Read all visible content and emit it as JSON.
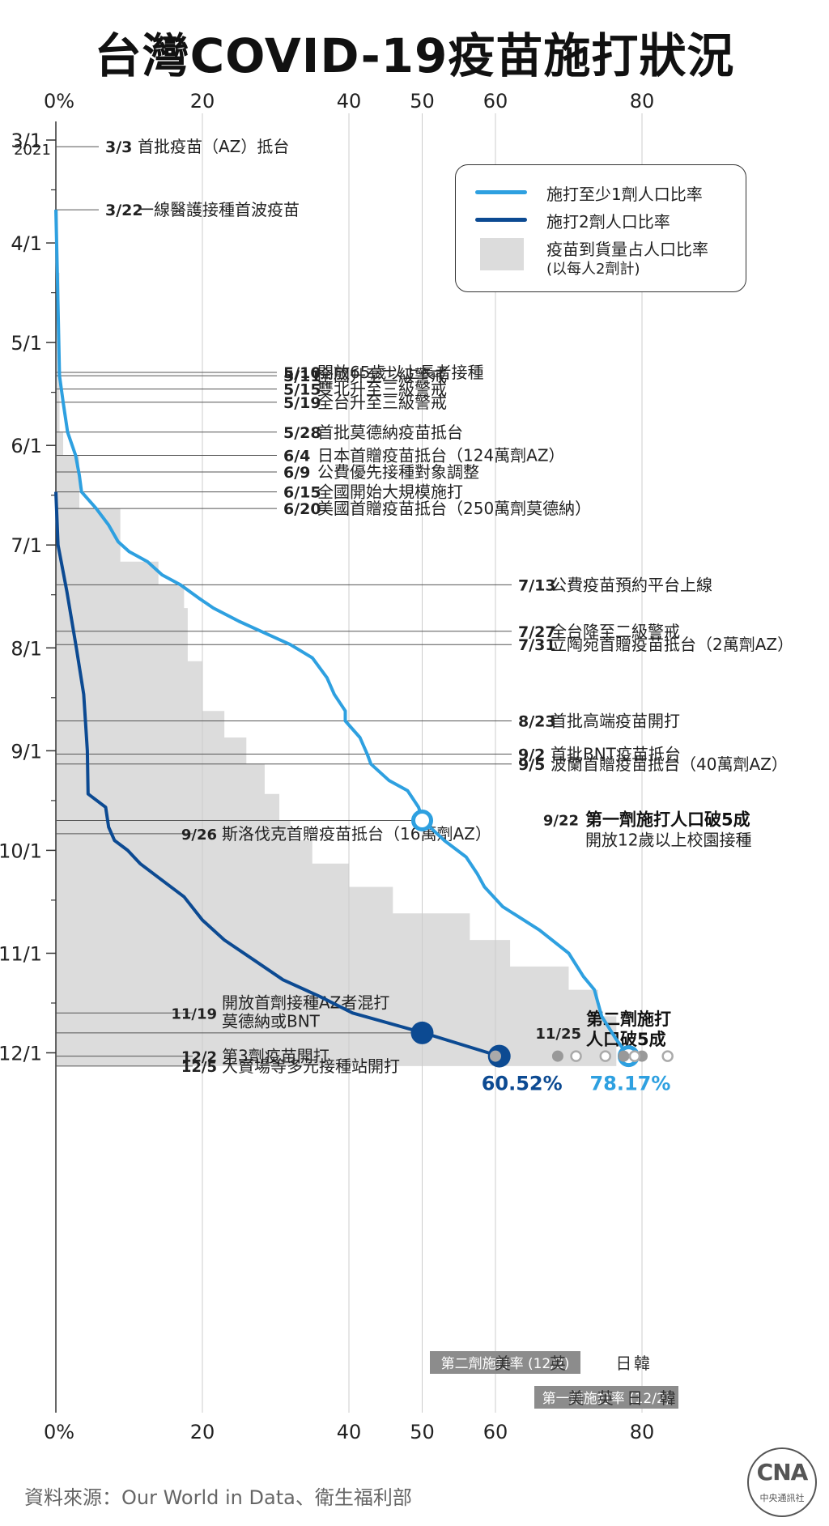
{
  "title": "台灣COVID-19疫苗施打狀況",
  "source": "資料來源：Our World in Data、衛生福利部",
  "logo": {
    "mark": "CNA",
    "text": "中央通訊社"
  },
  "legend": {
    "dose1": "施打至少1劑人口比率",
    "dose2": "施打2劑人口比率",
    "delivered_line1": "疫苗到貨量占人口比率",
    "delivered_line2": "(以每人2劑計)"
  },
  "colors": {
    "dose1": "#2ea0e0",
    "dose2": "#0c4a92",
    "delivered": "#dcdcdc",
    "axis": "#333333",
    "grid": "#cccccc",
    "annotation": "#555555",
    "country_dark": "#999999",
    "badge": "#8c8c8c"
  },
  "axis": {
    "x_ticks": [
      0,
      20,
      40,
      50,
      60,
      80
    ],
    "x_tick_labels": [
      "0%",
      "20",
      "40",
      "50",
      "60",
      "80"
    ],
    "year": "2021",
    "y_months": [
      {
        "label": "3/1",
        "date": "2021-03-01"
      },
      {
        "label": "4/1",
        "date": "2021-04-01"
      },
      {
        "label": "5/1",
        "date": "2021-05-01"
      },
      {
        "label": "6/1",
        "date": "2021-06-01"
      },
      {
        "label": "7/1",
        "date": "2021-07-01"
      },
      {
        "label": "8/1",
        "date": "2021-08-01"
      },
      {
        "label": "9/1",
        "date": "2021-09-01"
      },
      {
        "label": "10/1",
        "date": "2021-10-01"
      },
      {
        "label": "11/1",
        "date": "2021-11-01"
      },
      {
        "label": "12/1",
        "date": "2021-12-01"
      }
    ]
  },
  "chart_data": {
    "type": "area",
    "orientation": "time on vertical axis (downward), percent on horizontal axis",
    "xlim": [
      0,
      80
    ],
    "ylim": [
      "2021-03-01",
      "2021-12-05"
    ],
    "series": [
      {
        "name": "施打至少1劑人口比率",
        "type": "line",
        "points": [
          [
            "2021-03-22",
            0
          ],
          [
            "2021-04-10",
            0.2
          ],
          [
            "2021-05-11",
            0.5
          ],
          [
            "2021-05-19",
            1.0
          ],
          [
            "2021-05-28",
            1.6
          ],
          [
            "2021-06-04",
            2.7
          ],
          [
            "2021-06-10",
            3.2
          ],
          [
            "2021-06-15",
            3.5
          ],
          [
            "2021-06-20",
            5.5
          ],
          [
            "2021-06-25",
            7.2
          ],
          [
            "2021-06-30",
            8.5
          ],
          [
            "2021-07-03",
            10.0
          ],
          [
            "2021-07-06",
            12.5
          ],
          [
            "2021-07-10",
            14.5
          ],
          [
            "2021-07-13",
            17.0
          ],
          [
            "2021-07-17",
            19.5
          ],
          [
            "2021-07-20",
            21.5
          ],
          [
            "2021-07-24",
            25.0
          ],
          [
            "2021-07-27",
            28.0
          ],
          [
            "2021-07-31",
            32.0
          ],
          [
            "2021-08-04",
            35.0
          ],
          [
            "2021-08-10",
            37.0
          ],
          [
            "2021-08-15",
            38.0
          ],
          [
            "2021-08-20",
            39.5
          ],
          [
            "2021-08-23",
            39.5
          ],
          [
            "2021-08-28",
            41.5
          ],
          [
            "2021-09-02",
            42.5
          ],
          [
            "2021-09-05",
            43.0
          ],
          [
            "2021-09-10",
            45.5
          ],
          [
            "2021-09-13",
            48.0
          ],
          [
            "2021-09-18",
            49.5
          ],
          [
            "2021-09-22",
            50.1
          ],
          [
            "2021-09-28",
            53.0
          ],
          [
            "2021-10-03",
            56.0
          ],
          [
            "2021-10-08",
            57.5
          ],
          [
            "2021-10-12",
            58.5
          ],
          [
            "2021-10-18",
            61.0
          ],
          [
            "2021-10-25",
            66.0
          ],
          [
            "2021-11-01",
            70.0
          ],
          [
            "2021-11-08",
            72.0
          ],
          [
            "2021-11-12",
            73.5
          ],
          [
            "2021-11-20",
            74.5
          ],
          [
            "2021-11-27",
            76.5
          ],
          [
            "2021-12-02",
            78.17
          ]
        ]
      },
      {
        "name": "施打2劑人口比率",
        "type": "line",
        "points": [
          [
            "2021-06-15",
            0
          ],
          [
            "2021-07-01",
            0.3
          ],
          [
            "2021-07-15",
            1.5
          ],
          [
            "2021-08-01",
            2.8
          ],
          [
            "2021-08-15",
            3.8
          ],
          [
            "2021-09-01",
            4.3
          ],
          [
            "2021-09-14",
            4.4
          ],
          [
            "2021-09-18",
            6.8
          ],
          [
            "2021-09-24",
            7.2
          ],
          [
            "2021-09-28",
            8.0
          ],
          [
            "2021-10-01",
            9.8
          ],
          [
            "2021-10-05",
            11.5
          ],
          [
            "2021-10-10",
            14.5
          ],
          [
            "2021-10-15",
            17.5
          ],
          [
            "2021-10-22",
            20.0
          ],
          [
            "2021-10-28",
            23.0
          ],
          [
            "2021-11-03",
            27.0
          ],
          [
            "2021-11-09",
            31.0
          ],
          [
            "2021-11-14",
            36.0
          ],
          [
            "2021-11-19",
            40.5
          ],
          [
            "2021-11-25",
            50.2
          ],
          [
            "2021-12-02",
            60.52
          ]
        ]
      },
      {
        "name": "疫苗到貨量占人口比率",
        "type": "area",
        "points": [
          [
            "2021-03-22",
            0.3
          ],
          [
            "2021-04-10",
            0.5
          ],
          [
            "2021-05-10",
            0.5
          ],
          [
            "2021-05-28",
            1.0
          ],
          [
            "2021-06-04",
            3.2
          ],
          [
            "2021-06-20",
            8.8
          ],
          [
            "2021-07-06",
            14.0
          ],
          [
            "2021-07-13",
            17.5
          ],
          [
            "2021-07-20",
            18.0
          ],
          [
            "2021-08-05",
            20.0
          ],
          [
            "2021-08-20",
            23.0
          ],
          [
            "2021-08-28",
            26.0
          ],
          [
            "2021-09-05",
            28.5
          ],
          [
            "2021-09-14",
            30.5
          ],
          [
            "2021-09-22",
            32.0
          ],
          [
            "2021-09-28",
            35.0
          ],
          [
            "2021-10-05",
            40.0
          ],
          [
            "2021-10-12",
            46.0
          ],
          [
            "2021-10-20",
            56.5
          ],
          [
            "2021-10-28",
            62.0
          ],
          [
            "2021-11-05",
            70.0
          ],
          [
            "2021-11-12",
            74.0
          ],
          [
            "2021-11-20",
            76.5
          ],
          [
            "2021-12-05",
            78.0
          ]
        ]
      }
    ],
    "markers": [
      {
        "date": "2021-09-22",
        "value": 50,
        "series": "dose1",
        "style": "ring"
      },
      {
        "date": "2021-11-25",
        "value": 50,
        "series": "dose2",
        "style": "filled"
      },
      {
        "date": "2021-12-02",
        "value": 60.52,
        "series": "dose2",
        "style": "filled",
        "label": "60.52%"
      },
      {
        "date": "2021-12-02",
        "value": 78.17,
        "series": "dose1",
        "style": "ring",
        "label": "78.17%"
      }
    ],
    "events": [
      {
        "date": "2021-03-03",
        "label_date": "3/3",
        "text": "首批疫苗（AZ）抵台",
        "side": "left"
      },
      {
        "date": "2021-03-22",
        "label_date": "3/22",
        "text": "一線醫護接種首波疫苗",
        "side": "left"
      },
      {
        "date": "2021-05-10",
        "label_date": "5/10",
        "text": "開放65歲以上長者接種",
        "side": "mid"
      },
      {
        "date": "2021-05-11",
        "label_date": "5/11",
        "text": "全國升至二級警戒",
        "side": "mid"
      },
      {
        "date": "2021-05-15",
        "label_date": "5/15",
        "text": "雙北升至三級警戒",
        "side": "mid"
      },
      {
        "date": "2021-05-19",
        "label_date": "5/19",
        "text": "全台升至三級警戒",
        "side": "mid"
      },
      {
        "date": "2021-05-28",
        "label_date": "5/28",
        "text": "首批莫德納疫苗抵台",
        "side": "mid"
      },
      {
        "date": "2021-06-04",
        "label_date": "6/4",
        "text": "日本首贈疫苗抵台（124萬劑AZ）",
        "side": "mid"
      },
      {
        "date": "2021-06-09",
        "label_date": "6/9",
        "text": "公費優先接種對象調整",
        "side": "mid"
      },
      {
        "date": "2021-06-15",
        "label_date": "6/15",
        "text": "全國開始大規模施打",
        "side": "mid"
      },
      {
        "date": "2021-06-20",
        "label_date": "6/20",
        "text": "美國首贈疫苗抵台（250萬劑莫德納）",
        "side": "mid"
      },
      {
        "date": "2021-07-13",
        "label_date": "7/13",
        "text": "公費疫苗預約平台上線",
        "side": "right"
      },
      {
        "date": "2021-07-27",
        "label_date": "7/27",
        "text": "全台降至二級警戒",
        "side": "right"
      },
      {
        "date": "2021-07-31",
        "label_date": "7/31",
        "text": "立陶宛首贈疫苗抵台（2萬劑AZ）",
        "side": "right"
      },
      {
        "date": "2021-08-23",
        "label_date": "8/23",
        "text": "首批高端疫苗開打",
        "side": "right"
      },
      {
        "date": "2021-09-02",
        "label_date": "9/2",
        "text": "首批BNT疫苗抵台",
        "side": "right"
      },
      {
        "date": "2021-09-05",
        "label_date": "9/5",
        "text": "波蘭首贈疫苗抵台（40萬劑AZ）",
        "side": "right"
      },
      {
        "date": "2021-09-22",
        "label_date": "9/22",
        "text": "第一劑施打人口破5成",
        "text2": "開放12歲以上校園接種",
        "side": "point"
      },
      {
        "date": "2021-09-26",
        "label_date": "9/26",
        "text": "斯洛伐克首贈疫苗抵台（16萬劑AZ）",
        "side": "leftmid"
      },
      {
        "date": "2021-11-19",
        "label_date": "11/19",
        "text": "開放首劑接種AZ者混打",
        "text2": "莫德納或BNT",
        "side": "leftmid"
      },
      {
        "date": "2021-11-25",
        "label_date": "11/25",
        "text": "第二劑施打",
        "text2": "人口破5成",
        "side": "point2"
      },
      {
        "date": "2021-12-02",
        "label_date": "12/2",
        "text": "第3劑疫苗開打",
        "side": "leftmid"
      },
      {
        "date": "2021-12-05",
        "label_date": "12/5",
        "text": "大賣場等多元接種站開打",
        "side": "leftmid"
      }
    ],
    "comparison": {
      "dose2_badge": "第二劑施打率 (12/2)",
      "dose1_badge": "第一劑施打率 (12/2)",
      "dose2": [
        {
          "country": "美",
          "value": 60
        },
        {
          "country": "英",
          "value": 68.5
        },
        {
          "country": "日",
          "value": 77.5
        },
        {
          "country": "韓",
          "value": 80.0
        }
      ],
      "dose1": [
        {
          "country": "美",
          "value": 71.0
        },
        {
          "country": "英",
          "value": 75.0
        },
        {
          "country": "日",
          "value": 79.0
        },
        {
          "country": "韓",
          "value": 83.5
        }
      ]
    }
  }
}
